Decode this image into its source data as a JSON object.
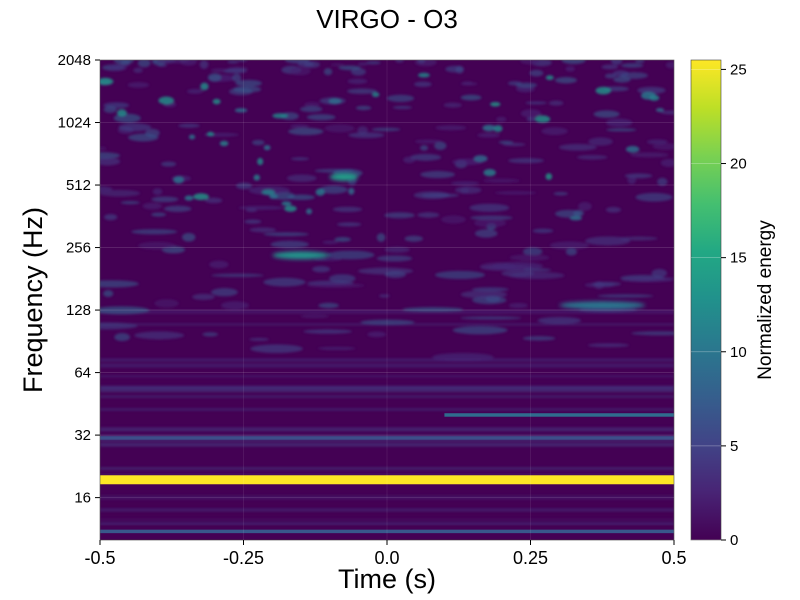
{
  "chart_data": {
    "type": "heatmap",
    "title": "VIRGO - O3",
    "xlabel": "Time (s)",
    "ylabel": "Frequency (Hz)",
    "colorbar_label": "Normalized energy",
    "xlim": [
      -0.5,
      0.5
    ],
    "x_ticks": [
      -0.5,
      -0.25,
      0.0,
      0.25,
      0.5
    ],
    "x_tick_labels": [
      "-0.5",
      "-0.25",
      "0.0",
      "0.25",
      "0.5"
    ],
    "y_scale": "log2",
    "ylim": [
      10,
      2048
    ],
    "y_ticks": [
      16,
      32,
      64,
      128,
      256,
      512,
      1024,
      2048
    ],
    "y_tick_labels": [
      "16",
      "32",
      "64",
      "128",
      "256",
      "512",
      "1024",
      "2048"
    ],
    "colorbar_range": [
      0,
      25.5
    ],
    "colorbar_ticks": [
      0,
      5,
      10,
      15,
      20,
      25
    ],
    "colorbar_tick_labels": [
      "0",
      "5",
      "10",
      "15",
      "20",
      "25"
    ],
    "colormap": "viridis",
    "grid": true,
    "features": [
      {
        "kind": "line",
        "freq": 19.5,
        "t_start": -0.5,
        "t_end": 0.5,
        "energy": 25.5,
        "label": ""
      },
      {
        "kind": "line",
        "freq": 11.0,
        "t_start": -0.5,
        "t_end": 0.5,
        "energy": 7,
        "label": ""
      },
      {
        "kind": "line",
        "freq": 31.0,
        "t_start": -0.5,
        "t_end": 0.5,
        "energy": 6,
        "label": ""
      },
      {
        "kind": "line",
        "freq": 40.0,
        "t_start": 0.1,
        "t_end": 0.5,
        "energy": 9,
        "label": ""
      },
      {
        "kind": "blob",
        "freq": 235,
        "t_start": -0.2,
        "t_end": -0.1,
        "energy": 13,
        "label": ""
      },
      {
        "kind": "blob",
        "freq": 560,
        "t_start": -0.1,
        "t_end": -0.05,
        "energy": 14,
        "label": ""
      },
      {
        "kind": "blob",
        "freq": 135,
        "t_start": 0.3,
        "t_end": 0.45,
        "energy": 10,
        "label": ""
      }
    ]
  }
}
